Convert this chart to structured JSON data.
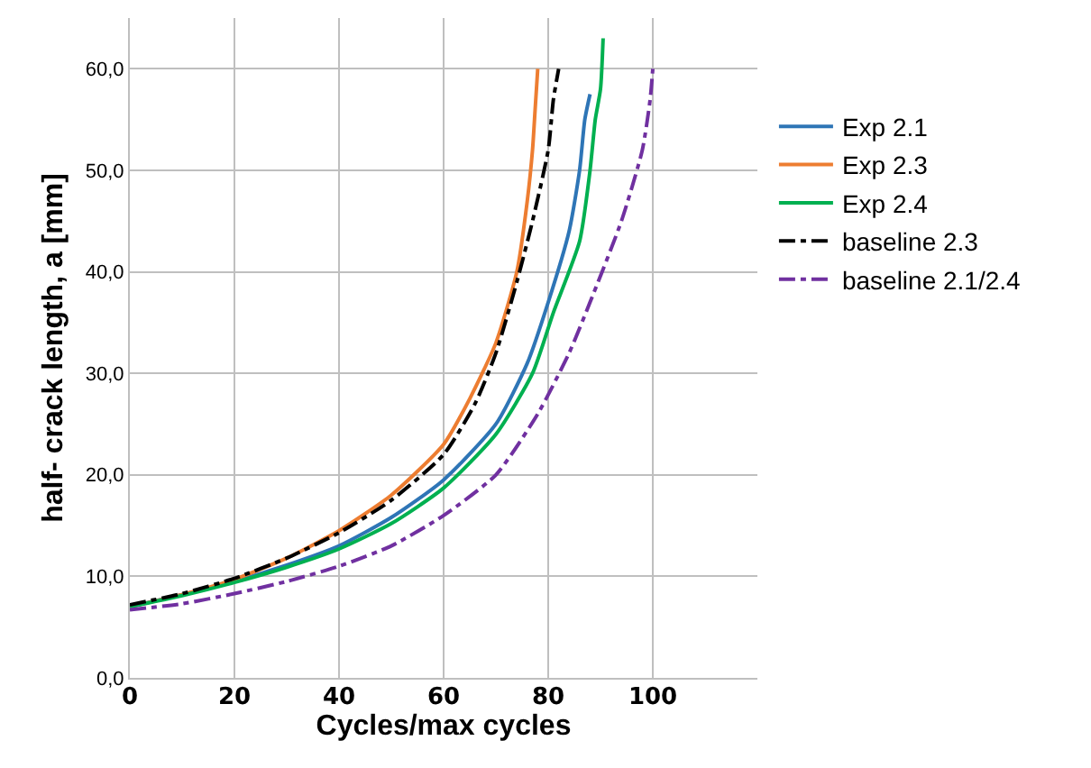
{
  "chart_data": {
    "type": "line",
    "xlabel": "Cycles/max cycles",
    "ylabel": "half- crack length, a [mm]",
    "xlim": [
      0,
      120
    ],
    "ylim": [
      0,
      65
    ],
    "xticks": [
      0,
      20,
      40,
      60,
      80,
      100
    ],
    "yticks": [
      {
        "value": 0,
        "label": "0,0"
      },
      {
        "value": 10,
        "label": "10,0"
      },
      {
        "value": 20,
        "label": "20,0"
      },
      {
        "value": 30,
        "label": "30,0"
      },
      {
        "value": 40,
        "label": "40,0"
      },
      {
        "value": 50,
        "label": "50,0"
      },
      {
        "value": 60,
        "label": "60,0"
      }
    ],
    "grid": true,
    "legend": "right",
    "marker": "none",
    "series": [
      {
        "name": "Exp 2.1",
        "color": "#2e75b6",
        "line_style": "solid",
        "x": [
          0,
          10,
          20,
          30,
          40,
          50,
          60,
          70,
          76,
          80,
          84,
          86,
          87,
          88
        ],
        "values": [
          7,
          8.2,
          9.5,
          11.1,
          13,
          15.8,
          19.5,
          25,
          31,
          37,
          44,
          50,
          55,
          57.5
        ]
      },
      {
        "name": "Exp 2.3",
        "color": "#ed7d31",
        "line_style": "solid",
        "x": [
          0,
          10,
          20,
          30,
          40,
          50,
          60,
          65,
          70,
          74,
          76,
          77,
          77.5,
          78
        ],
        "values": [
          7,
          8.2,
          9.7,
          11.8,
          14.5,
          18,
          23,
          27.5,
          33,
          40,
          47,
          52,
          56,
          60
        ]
      },
      {
        "name": "Exp 2.4",
        "color": "#00b050",
        "line_style": "solid",
        "x": [
          0,
          10,
          20,
          30,
          40,
          50,
          60,
          70,
          77,
          81,
          86,
          88,
          89,
          90,
          90.5
        ],
        "values": [
          7,
          8.1,
          9.4,
          10.9,
          12.7,
          15.2,
          18.7,
          24,
          30,
          36,
          43,
          50,
          55,
          58,
          63
        ]
      },
      {
        "name": "baseline 2.3",
        "color": "#000000",
        "line_style": "dashdot",
        "x": [
          0,
          10,
          20,
          30,
          40,
          50,
          60,
          66,
          70,
          74,
          77,
          80,
          81,
          82
        ],
        "values": [
          7.2,
          8.3,
          9.8,
          11.8,
          14.3,
          17.5,
          22,
          27,
          32,
          39,
          45,
          52,
          57,
          60
        ]
      },
      {
        "name": "baseline 2.1/2.4",
        "color": "#7030a0",
        "line_style": "dashdot",
        "x": [
          0,
          10,
          20,
          30,
          40,
          50,
          60,
          70,
          78,
          84,
          88,
          94,
          98,
          99.5,
          100
        ],
        "values": [
          6.7,
          7.3,
          8.3,
          9.5,
          11,
          13,
          16,
          20,
          26,
          32,
          37,
          45,
          52,
          57,
          60
        ]
      }
    ]
  }
}
